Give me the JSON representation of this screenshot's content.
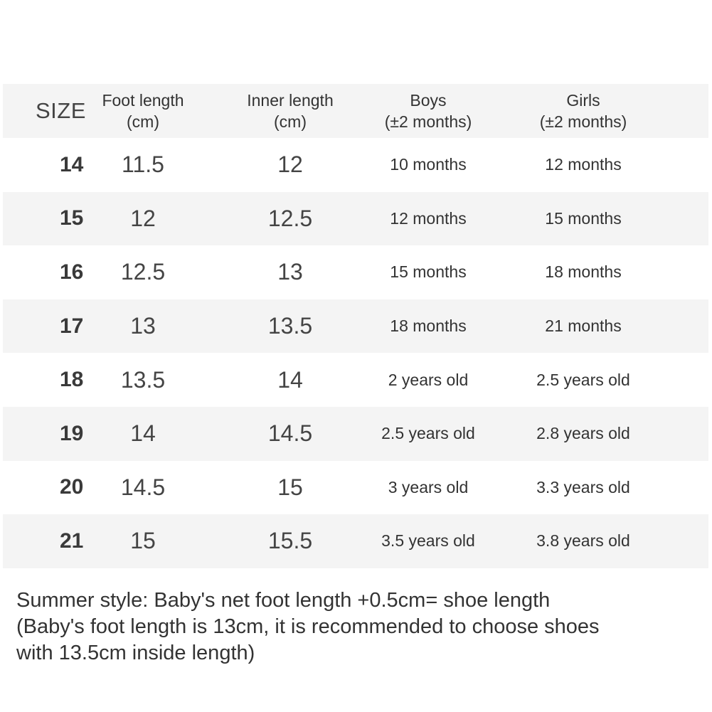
{
  "table": {
    "headers": {
      "size": "SIZE",
      "foot_length": "Foot length\n(cm)",
      "inner_length": "Inner length\n(cm)",
      "boys": "Boys\n(±2 months)",
      "girls": "Girls\n(±2 months)"
    },
    "rows": [
      {
        "size": "14",
        "foot": "11.5",
        "inner": "12",
        "boys": "10 months",
        "girls": "12 months"
      },
      {
        "size": "15",
        "foot": "12",
        "inner": "12.5",
        "boys": "12 months",
        "girls": "15 months"
      },
      {
        "size": "16",
        "foot": "12.5",
        "inner": "13",
        "boys": "15 months",
        "girls": "18 months"
      },
      {
        "size": "17",
        "foot": "13",
        "inner": "13.5",
        "boys": "18 months",
        "girls": "21 months"
      },
      {
        "size": "18",
        "foot": "13.5",
        "inner": "14",
        "boys": "2 years old",
        "girls": "2.5 years old"
      },
      {
        "size": "19",
        "foot": "14",
        "inner": "14.5",
        "boys": "2.5 years old",
        "girls": "2.8 years old"
      },
      {
        "size": "20",
        "foot": "14.5",
        "inner": "15",
        "boys": "3 years old",
        "girls": "3.3 years old"
      },
      {
        "size": "21",
        "foot": "15",
        "inner": "15.5",
        "boys": "3.5 years old",
        "girls": "3.8 years old"
      }
    ]
  },
  "note": {
    "line1": "Summer style: Baby's net foot length +0.5cm= shoe length",
    "line2": "(Baby's foot length is 13cm, it is recommended to choose shoes",
    "line3": "with 13.5cm inside length)"
  }
}
